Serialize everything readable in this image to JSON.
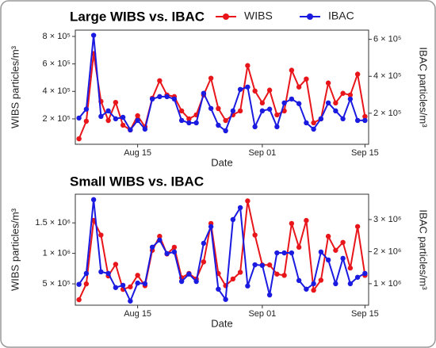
{
  "chart_data": [
    {
      "type": "line",
      "title": "Large WIBS vs. IBAC",
      "xlabel": "Date",
      "ylabel": "WIBS particles/m³",
      "y2label": "IBAC particles/m³",
      "legend": "top",
      "x": [
        "Aug 07",
        "Aug 08",
        "Aug 09",
        "Aug 10",
        "Aug 11",
        "Aug 12",
        "Aug 13",
        "Aug 14",
        "Aug 15",
        "Aug 16",
        "Aug 17",
        "Aug 18",
        "Aug 19",
        "Aug 20",
        "Aug 21",
        "Aug 22",
        "Aug 23",
        "Aug 24",
        "Aug 25",
        "Aug 26",
        "Aug 27",
        "Aug 28",
        "Aug 29",
        "Aug 30",
        "Aug 31",
        "Sep 01",
        "Sep 02",
        "Sep 03",
        "Sep 04",
        "Sep 05",
        "Sep 06",
        "Sep 07",
        "Sep 08",
        "Sep 09",
        "Sep 10",
        "Sep 11",
        "Sep 12",
        "Sep 13",
        "Sep 14",
        "Sep 15"
      ],
      "xticks": [
        "Aug 15",
        "Sep 01",
        "Sep 15"
      ],
      "ylim": [
        15000,
        846000
      ],
      "yticks": [
        {
          "value": 200000,
          "label": "2 × 10⁵"
        },
        {
          "value": 400000,
          "label": "4 × 10⁵"
        },
        {
          "value": 600000,
          "label": "6 × 10⁵"
        },
        {
          "value": 800000,
          "label": "8 × 10⁵"
        }
      ],
      "y2lim": [
        32000,
        650000
      ],
      "y2ticks": [
        {
          "value": 200000,
          "label": "2 × 10⁵"
        },
        {
          "value": 400000,
          "label": "4 × 10⁵"
        },
        {
          "value": 600000,
          "label": "6 × 10⁵"
        }
      ],
      "series": [
        {
          "name": "WIBS",
          "color": "#e8161b",
          "values": [
            55000,
            183000,
            675000,
            327000,
            188000,
            320000,
            154000,
            119000,
            223000,
            142000,
            350000,
            478000,
            374000,
            362000,
            258000,
            200000,
            229000,
            374000,
            496000,
            275000,
            188000,
            229000,
            258000,
            588000,
            403000,
            316000,
            409000,
            229000,
            258000,
            554000,
            432000,
            490000,
            171000,
            200000,
            461000,
            316000,
            386000,
            374000,
            525000,
            217000
          ]
        },
        {
          "name": "IBAC",
          "color": "#1a1ae0",
          "axis": "y2",
          "values": [
            174000,
            222000,
            622000,
            183000,
            213000,
            170000,
            178000,
            110000,
            161000,
            114000,
            277000,
            290000,
            290000,
            277000,
            161000,
            148000,
            148000,
            308000,
            226000,
            135000,
            105000,
            213000,
            329000,
            342000,
            127000,
            213000,
            222000,
            127000,
            256000,
            277000,
            252000,
            148000,
            114000,
            170000,
            256000,
            213000,
            170000,
            277000,
            161000,
            161000
          ]
        }
      ]
    },
    {
      "type": "line",
      "title": "Small WIBS vs. IBAC",
      "xlabel": "Date",
      "ylabel": "WIBS particles/m³",
      "y2label": "IBAC particles/m³",
      "x": [
        "Aug 07",
        "Aug 08",
        "Aug 09",
        "Aug 10",
        "Aug 11",
        "Aug 12",
        "Aug 13",
        "Aug 14",
        "Aug 15",
        "Aug 16",
        "Aug 17",
        "Aug 18",
        "Aug 19",
        "Aug 20",
        "Aug 21",
        "Aug 22",
        "Aug 23",
        "Aug 24",
        "Aug 25",
        "Aug 26",
        "Aug 27",
        "Aug 28",
        "Aug 29",
        "Aug 30",
        "Aug 31",
        "Sep 01",
        "Sep 02",
        "Sep 03",
        "Sep 04",
        "Sep 05",
        "Sep 06",
        "Sep 07",
        "Sep 08",
        "Sep 09",
        "Sep 10",
        "Sep 11",
        "Sep 12",
        "Sep 13",
        "Sep 14",
        "Sep 15"
      ],
      "xticks": [
        "Aug 15",
        "Sep 01",
        "Sep 15"
      ],
      "ylim": [
        150000,
        1970000
      ],
      "yticks": [
        {
          "value": 500000,
          "label": "5 × 10⁵"
        },
        {
          "value": 1000000,
          "label": "1 × 10⁶"
        },
        {
          "value": 1500000,
          "label": "1.5 × 10⁶"
        }
      ],
      "y2lim": [
        330000,
        3790000
      ],
      "y2ticks": [
        {
          "value": 1000000,
          "label": "1 × 10⁶"
        },
        {
          "value": 2000000,
          "label": "2 × 10⁶"
        },
        {
          "value": 3000000,
          "label": "3 × 10⁶"
        }
      ],
      "series": [
        {
          "name": "WIBS",
          "color": "#e8161b",
          "values": [
            240000,
            500000,
            1540000,
            1300000,
            630000,
            820000,
            410000,
            450000,
            640000,
            470000,
            1050000,
            1280000,
            990000,
            1100000,
            600000,
            670000,
            580000,
            860000,
            1490000,
            670000,
            470000,
            580000,
            690000,
            1860000,
            1300000,
            810000,
            810000,
            660000,
            640000,
            1490000,
            1100000,
            1540000,
            396000,
            560000,
            1280000,
            1050000,
            1180000,
            760000,
            1440000,
            640000
          ]
        },
        {
          "name": "IBAC",
          "color": "#1a1ae0",
          "axis": "y2",
          "values": [
            980000,
            1320000,
            3620000,
            1370000,
            1320000,
            880000,
            950000,
            460000,
            1020000,
            1000000,
            2140000,
            2360000,
            1940000,
            1990000,
            1070000,
            1300000,
            1070000,
            2260000,
            2780000,
            830000,
            510000,
            3000000,
            3370000,
            930000,
            1590000,
            1570000,
            650000,
            1960000,
            1960000,
            1960000,
            1100000,
            830000,
            1000000,
            1990000,
            1740000,
            1000000,
            1790000,
            1000000,
            1200000,
            1320000
          ]
        }
      ]
    }
  ]
}
